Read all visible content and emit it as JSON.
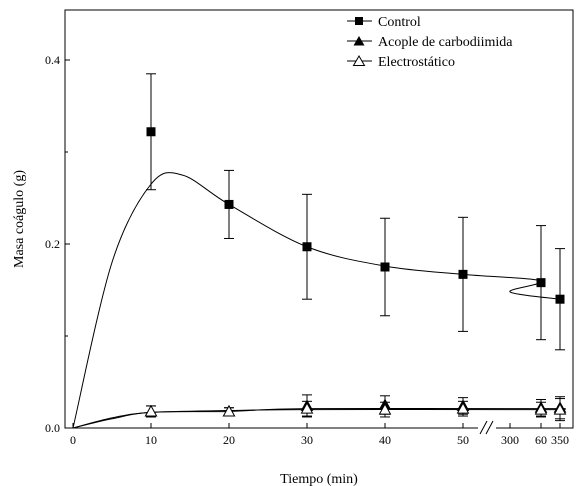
{
  "chart_data": {
    "type": "line",
    "xlabel": "Tiempo (min)",
    "ylabel": "Masa coágulo (g)",
    "ylim": [
      0.0,
      0.45
    ],
    "y_ticks": [
      "0.0",
      "0.2",
      "0.4"
    ],
    "x_ticks": [
      "0",
      "10",
      "20",
      "30",
      "40",
      "50",
      "60",
      "300",
      "350"
    ],
    "x_axis_break": "between 60 and 300",
    "grid": false,
    "legend_position": "top-right",
    "series": [
      {
        "name": "Control",
        "marker": "filled-square",
        "x": [
          10,
          20,
          30,
          40,
          50,
          60,
          350
        ],
        "values": [
          0.322,
          0.243,
          0.197,
          0.175,
          0.167,
          0.158,
          0.14
        ],
        "error": [
          0.063,
          0.037,
          0.057,
          0.053,
          0.062,
          0.062,
          0.055
        ],
        "fit_curve": [
          [
            0,
            0.0
          ],
          [
            5,
            0.18
          ],
          [
            10,
            0.265
          ],
          [
            14,
            0.275
          ],
          [
            20,
            0.243
          ],
          [
            30,
            0.197
          ],
          [
            40,
            0.176
          ],
          [
            50,
            0.167
          ],
          [
            60,
            0.16
          ],
          [
            300,
            0.148
          ],
          [
            350,
            0.14
          ]
        ]
      },
      {
        "name": "Acople de carbodiimida",
        "marker": "filled-triangle",
        "x": [
          10,
          20,
          30,
          40,
          50,
          60,
          350
        ],
        "values": [
          0.018,
          0.018,
          0.024,
          0.025,
          0.024,
          0.022,
          0.022
        ],
        "error": [
          0.006,
          0.004,
          0.012,
          0.01,
          0.009,
          0.009,
          0.012
        ],
        "fit_curve": [
          [
            0,
            0.0
          ],
          [
            5,
            0.01
          ],
          [
            10,
            0.017
          ],
          [
            20,
            0.018
          ],
          [
            30,
            0.021
          ],
          [
            60,
            0.021
          ],
          [
            350,
            0.021
          ]
        ]
      },
      {
        "name": "Electrostático",
        "marker": "open-triangle",
        "x": [
          10,
          20,
          30,
          40,
          50,
          60,
          350
        ],
        "values": [
          0.018,
          0.018,
          0.021,
          0.02,
          0.021,
          0.02,
          0.02
        ],
        "error": [
          0.006,
          0.004,
          0.008,
          0.008,
          0.008,
          0.008,
          0.012
        ],
        "fit_curve": [
          [
            0,
            0.0
          ],
          [
            5,
            0.011
          ],
          [
            10,
            0.017
          ],
          [
            20,
            0.019
          ],
          [
            30,
            0.02
          ],
          [
            60,
            0.02
          ],
          [
            350,
            0.02
          ]
        ]
      }
    ]
  },
  "colors": {
    "ink": "#000000",
    "background": "#ffffff"
  }
}
